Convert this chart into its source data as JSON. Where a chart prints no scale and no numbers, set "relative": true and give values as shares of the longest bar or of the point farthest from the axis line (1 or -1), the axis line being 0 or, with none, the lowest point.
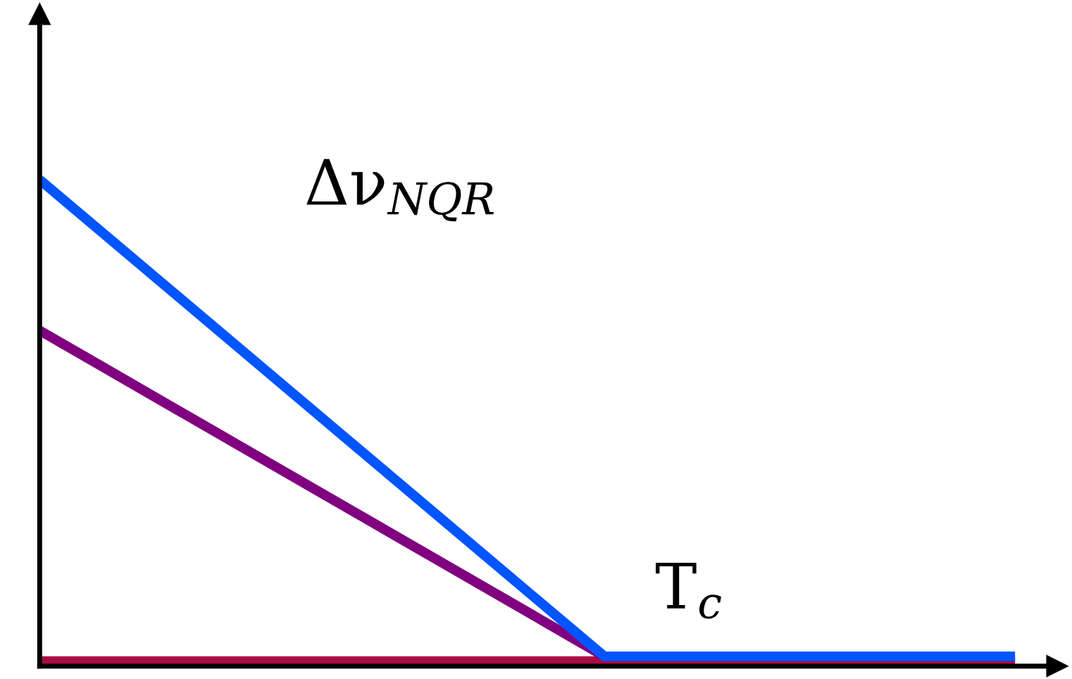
{
  "chart_data": {
    "type": "line",
    "relative": true,
    "categories": [
      null,
      null,
      null,
      null,
      null,
      null,
      null,
      null,
      null,
      null,
      null,
      null,
      null,
      null,
      null,
      null,
      null,
      null,
      null,
      null
    ],
    "series": [
      {
        "color": "#aa0a46",
        "values": [
          0.01,
          null,
          null,
          null,
          null,
          null,
          null,
          null,
          null,
          null,
          null,
          null,
          null,
          null,
          null,
          null,
          null,
          null,
          null,
          0.01
        ]
      },
      {
        "color": "#800080",
        "values": [
          0.69,
          null,
          null,
          null,
          null,
          null,
          null,
          null,
          null,
          null,
          null,
          0.02,
          null,
          null,
          null,
          null,
          null,
          null,
          null,
          null
        ]
      },
      {
        "color": "#0055ff",
        "values": [
          1.0,
          null,
          null,
          null,
          null,
          null,
          null,
          null,
          null,
          null,
          null,
          0.02,
          null,
          null,
          null,
          null,
          null,
          null,
          null,
          0.02
        ]
      }
    ],
    "annotations": [
      "Δν$_{NQR}$",
      "T$_{c}$"
    ]
  }
}
